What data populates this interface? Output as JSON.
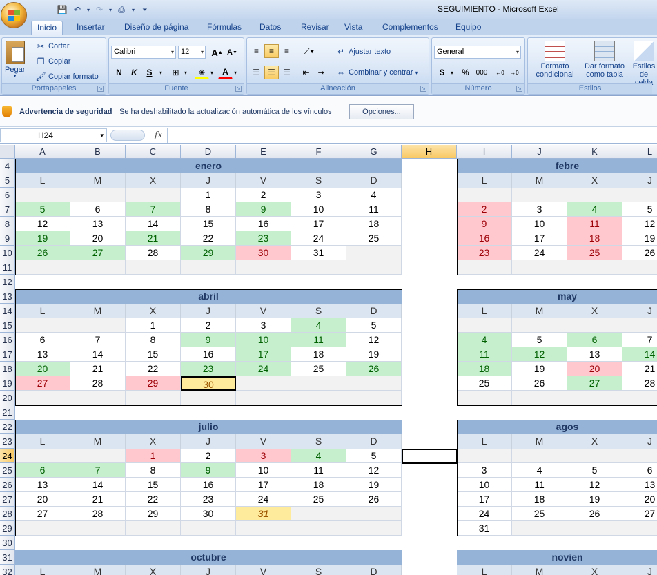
{
  "app": {
    "title": "SEGUIMIENTO - Microsoft Excel"
  },
  "ribbon": {
    "tabs": [
      "Inicio",
      "Insertar",
      "Diseño de página",
      "Fórmulas",
      "Datos",
      "Revisar",
      "Vista",
      "Complementos",
      "Equipo"
    ],
    "active_tab": "Inicio",
    "clipboard": {
      "paste": "Pegar",
      "cut": "Cortar",
      "copy": "Copiar",
      "format_painter": "Copiar formato",
      "label": "Portapapeles"
    },
    "font": {
      "name": "Calibri",
      "size": "12",
      "bold": "N",
      "italic": "K",
      "underline": "S",
      "label": "Fuente"
    },
    "alignment": {
      "wrap": "Ajustar texto",
      "merge": "Combinar y centrar",
      "label": "Alineación"
    },
    "number": {
      "format": "General",
      "currency": "$",
      "percent": "%",
      "thousands": "000",
      "label": "Número"
    },
    "styles": {
      "conditional": "Formato condicional",
      "as_table": "Dar formato como tabla",
      "cell_styles": "Estilos de celda",
      "label": "Estilos"
    }
  },
  "security": {
    "title": "Advertencia de seguridad",
    "message": "Se ha deshabilitado la actualización automática de los vínculos",
    "options": "Opciones..."
  },
  "formula_bar": {
    "name_box": "H24",
    "fx": "fx",
    "content": ""
  },
  "columns": [
    "A",
    "B",
    "C",
    "D",
    "E",
    "F",
    "G",
    "H",
    "I",
    "J",
    "K",
    "L"
  ],
  "selected_column": "H",
  "rows": [
    "4",
    "5",
    "6",
    "7",
    "8",
    "9",
    "10",
    "11",
    "12",
    "13",
    "14",
    "15",
    "16",
    "17",
    "18",
    "19",
    "20",
    "21",
    "22",
    "23",
    "24",
    "25",
    "26",
    "27",
    "28",
    "29",
    "30",
    "31",
    "32"
  ],
  "selected_row": "24",
  "day_headers": [
    "L",
    "M",
    "X",
    "J",
    "V",
    "S",
    "D"
  ],
  "months": [
    {
      "name": "enero",
      "weeks": [
        [
          "",
          "",
          "",
          "1",
          "2",
          "3",
          "4"
        ],
        [
          "5",
          "6",
          "7",
          "8",
          "9",
          "10",
          "11"
        ],
        [
          "12",
          "13",
          "14",
          "15",
          "16",
          "17",
          "18"
        ],
        [
          "19",
          "20",
          "21",
          "22",
          "23",
          "24",
          "25"
        ],
        [
          "26",
          "27",
          "28",
          "29",
          "30",
          "31",
          ""
        ],
        [
          "",
          "",
          "",
          "",
          "",
          "",
          ""
        ]
      ],
      "styles": [
        [
          "e",
          "e",
          "e",
          "",
          "",
          "",
          ""
        ],
        [
          "g",
          "",
          "g",
          "",
          "g",
          "",
          ""
        ],
        [
          "",
          "",
          "",
          "",
          "",
          "",
          ""
        ],
        [
          "g",
          "",
          "g",
          "",
          "g",
          "",
          ""
        ],
        [
          "g",
          "g",
          "",
          "g",
          "r",
          "",
          "e"
        ],
        [
          "e",
          "e",
          "e",
          "e",
          "e",
          "e",
          "e"
        ]
      ]
    },
    {
      "name": "febrero",
      "label": "febre",
      "weeks": [
        [
          "",
          "",
          "",
          ""
        ],
        [
          "2",
          "3",
          "4",
          "5"
        ],
        [
          "9",
          "10",
          "11",
          "12"
        ],
        [
          "16",
          "17",
          "18",
          "19"
        ],
        [
          "23",
          "24",
          "25",
          "26"
        ],
        [
          "",
          "",
          "",
          ""
        ]
      ],
      "styles": [
        [
          "e",
          "e",
          "e",
          "e"
        ],
        [
          "r",
          "",
          "g",
          ""
        ],
        [
          "r",
          "",
          "r",
          ""
        ],
        [
          "r",
          "",
          "r",
          ""
        ],
        [
          "r",
          "",
          "r",
          ""
        ],
        [
          "e",
          "e",
          "e",
          "e"
        ]
      ]
    },
    {
      "name": "abril",
      "weeks": [
        [
          "",
          "",
          "1",
          "2",
          "3",
          "4",
          "5"
        ],
        [
          "6",
          "7",
          "8",
          "9",
          "10",
          "11",
          "12"
        ],
        [
          "13",
          "14",
          "15",
          "16",
          "17",
          "18",
          "19"
        ],
        [
          "20",
          "21",
          "22",
          "23",
          "24",
          "25",
          "26"
        ],
        [
          "27",
          "28",
          "29",
          "30",
          "",
          "",
          ""
        ],
        [
          "",
          "",
          "",
          "",
          "",
          "",
          ""
        ]
      ],
      "styles": [
        [
          "e",
          "e",
          "",
          "",
          "",
          "g",
          ""
        ],
        [
          "",
          "",
          "",
          "g",
          "g",
          "g",
          ""
        ],
        [
          "",
          "",
          "",
          "",
          "g",
          "",
          ""
        ],
        [
          "g",
          "",
          "",
          "g",
          "g",
          "",
          "g"
        ],
        [
          "r",
          "",
          "r",
          "y",
          "e",
          "e",
          "e"
        ],
        [
          "e",
          "e",
          "e",
          "e",
          "e",
          "e",
          "e"
        ]
      ]
    },
    {
      "name": "mayo",
      "label": "may",
      "weeks": [
        [
          "",
          "",
          "",
          ""
        ],
        [
          "4",
          "5",
          "6",
          "7"
        ],
        [
          "11",
          "12",
          "13",
          "14"
        ],
        [
          "18",
          "19",
          "20",
          "21"
        ],
        [
          "25",
          "26",
          "27",
          "28"
        ],
        [
          "",
          "",
          "",
          ""
        ]
      ],
      "styles": [
        [
          "e",
          "e",
          "e",
          "e"
        ],
        [
          "g",
          "",
          "g",
          ""
        ],
        [
          "g",
          "g",
          "",
          "g"
        ],
        [
          "g",
          "",
          "r",
          ""
        ],
        [
          "",
          "",
          "g",
          ""
        ],
        [
          "e",
          "e",
          "e",
          "e"
        ]
      ]
    },
    {
      "name": "julio",
      "weeks": [
        [
          "",
          "",
          "1",
          "2",
          "3",
          "4",
          "5"
        ],
        [
          "6",
          "7",
          "8",
          "9",
          "10",
          "11",
          "12"
        ],
        [
          "13",
          "14",
          "15",
          "16",
          "17",
          "18",
          "19"
        ],
        [
          "20",
          "21",
          "22",
          "23",
          "24",
          "25",
          "26"
        ],
        [
          "27",
          "28",
          "29",
          "30",
          "31",
          "",
          ""
        ],
        [
          "",
          "",
          "",
          "",
          "",
          "",
          ""
        ]
      ],
      "styles": [
        [
          "e",
          "e",
          "r",
          "",
          "r",
          "g",
          ""
        ],
        [
          "g",
          "g",
          "",
          "g",
          "",
          "",
          ""
        ],
        [
          "",
          "",
          "",
          "",
          "",
          "",
          ""
        ],
        [
          "",
          "",
          "",
          "",
          "",
          "",
          ""
        ],
        [
          "",
          "",
          "",
          "",
          "y",
          "e",
          "e"
        ],
        [
          "e",
          "e",
          "e",
          "e",
          "e",
          "e",
          "e"
        ]
      ]
    },
    {
      "name": "agosto",
      "label": "agos",
      "weeks": [
        [
          "",
          "",
          "",
          ""
        ],
        [
          "3",
          "4",
          "5",
          "6"
        ],
        [
          "10",
          "11",
          "12",
          "13"
        ],
        [
          "17",
          "18",
          "19",
          "20"
        ],
        [
          "24",
          "25",
          "26",
          "27"
        ],
        [
          "31",
          "",
          "",
          ""
        ]
      ],
      "styles": [
        [
          "e",
          "e",
          "e",
          "e"
        ],
        [
          "",
          "",
          "",
          ""
        ],
        [
          "",
          "",
          "",
          ""
        ],
        [
          "",
          "",
          "",
          ""
        ],
        [
          "",
          "",
          "",
          ""
        ],
        [
          "",
          "e",
          "e",
          "e"
        ]
      ]
    },
    {
      "name": "octubre"
    },
    {
      "name": "noviembre",
      "label": "novien"
    }
  ]
}
